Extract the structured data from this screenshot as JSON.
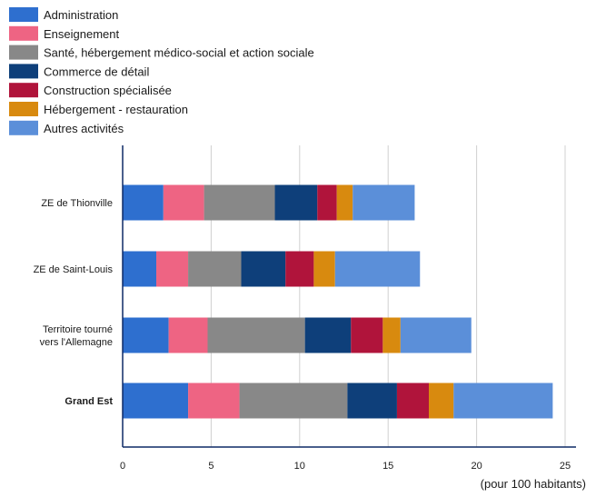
{
  "chart_data": {
    "type": "bar",
    "orientation": "horizontal",
    "stacked": true,
    "categories": [
      {
        "label": "ZE de Thionville",
        "bold": false
      },
      {
        "label": "ZE de Saint-Louis",
        "bold": false
      },
      {
        "label": "Territoire tourné vers l'Allemagne",
        "bold": false
      },
      {
        "label": "Grand Est",
        "bold": true
      }
    ],
    "series": [
      {
        "name": "Administration",
        "color": "#2e6fcf",
        "values": [
          2.3,
          1.9,
          2.6,
          3.7
        ]
      },
      {
        "name": "Enseignement",
        "color": "#ee6483",
        "values": [
          2.3,
          1.8,
          2.2,
          2.9
        ]
      },
      {
        "name": "Santé, hébergement médico-social et action sociale",
        "color": "#888888",
        "values": [
          4.0,
          3.0,
          5.5,
          6.1
        ]
      },
      {
        "name": "Commerce de détail",
        "color": "#0e3f7a",
        "values": [
          2.4,
          2.5,
          2.6,
          2.8
        ]
      },
      {
        "name": "Construction spécialisée",
        "color": "#b0143b",
        "values": [
          1.1,
          1.6,
          1.8,
          1.8
        ]
      },
      {
        "name": "Hébergement - restauration",
        "color": "#d88a0f",
        "values": [
          0.9,
          1.2,
          1.0,
          1.4
        ]
      },
      {
        "name": "Autres activités",
        "color": "#5b8fd9",
        "values": [
          3.5,
          4.8,
          4.0,
          5.6
        ]
      }
    ],
    "xlim": [
      0,
      25
    ],
    "xticks": [
      0,
      5,
      10,
      15,
      20,
      25
    ],
    "xunit": "(pour 100 habitants)",
    "grid": "vertical",
    "legend_position": "top-left"
  }
}
